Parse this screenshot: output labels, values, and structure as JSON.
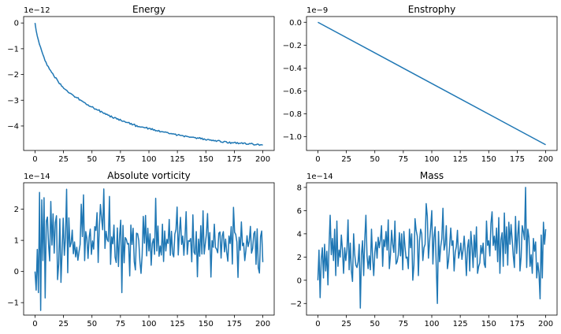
{
  "chart_data": [
    {
      "type": "line",
      "title": "Energy",
      "offset_label": "1e−12",
      "x_range": [
        0,
        200
      ],
      "xlim": [
        -10,
        210
      ],
      "ylim": [
        -4.95,
        0.25
      ],
      "xticks": [
        0,
        25,
        50,
        75,
        100,
        125,
        150,
        175,
        200
      ],
      "yticks": [
        0,
        -1,
        -2,
        -3,
        -4
      ],
      "ytick_labels": [
        "0",
        "−1",
        "−2",
        "−3",
        "−4"
      ],
      "color": "#1f77b4",
      "y": [
        0.0,
        -0.29,
        -0.5,
        -0.66,
        -0.83,
        -0.94,
        -1.08,
        -1.21,
        -1.32,
        -1.46,
        -1.53,
        -1.65,
        -1.69,
        -1.79,
        -1.84,
        -1.92,
        -1.96,
        -2.05,
        -2.13,
        -2.13,
        -2.2,
        -2.28,
        -2.36,
        -2.36,
        -2.45,
        -2.48,
        -2.54,
        -2.57,
        -2.6,
        -2.63,
        -2.69,
        -2.72,
        -2.73,
        -2.76,
        -2.79,
        -2.83,
        -2.88,
        -2.88,
        -2.91,
        -2.9,
        -2.99,
        -2.99,
        -3.02,
        -3.04,
        -3.08,
        -3.09,
        -3.14,
        -3.18,
        -3.18,
        -3.23,
        -3.24,
        -3.26,
        -3.25,
        -3.3,
        -3.35,
        -3.34,
        -3.37,
        -3.39,
        -3.37,
        -3.46,
        -3.43,
        -3.47,
        -3.51,
        -3.5,
        -3.55,
        -3.54,
        -3.58,
        -3.58,
        -3.65,
        -3.61,
        -3.67,
        -3.7,
        -3.67,
        -3.68,
        -3.73,
        -3.72,
        -3.78,
        -3.74,
        -3.79,
        -3.82,
        -3.81,
        -3.82,
        -3.86,
        -3.86,
        -3.87,
        -3.86,
        -3.93,
        -3.9,
        -3.96,
        -3.94,
        -3.93,
        -4.02,
        -3.98,
        -4.03,
        -4.02,
        -4.04,
        -4.04,
        -4.04,
        -4.05,
        -4.07,
        -4.07,
        -4.05,
        -4.12,
        -4.09,
        -4.09,
        -4.14,
        -4.1,
        -4.16,
        -4.14,
        -4.19,
        -4.18,
        -4.2,
        -4.17,
        -4.23,
        -4.22,
        -4.22,
        -4.23,
        -4.24,
        -4.23,
        -4.25,
        -4.25,
        -4.29,
        -4.3,
        -4.29,
        -4.31,
        -4.3,
        -4.32,
        -4.31,
        -4.37,
        -4.35,
        -4.33,
        -4.36,
        -4.37,
        -4.37,
        -4.38,
        -4.42,
        -4.38,
        -4.4,
        -4.41,
        -4.42,
        -4.44,
        -4.43,
        -4.44,
        -4.43,
        -4.45,
        -4.45,
        -4.49,
        -4.46,
        -4.48,
        -4.45,
        -4.5,
        -4.47,
        -4.53,
        -4.5,
        -4.53,
        -4.55,
        -4.52,
        -4.52,
        -4.55,
        -4.54,
        -4.57,
        -4.55,
        -4.58,
        -4.56,
        -4.6,
        -4.57,
        -4.56,
        -4.57,
        -4.62,
        -4.63,
        -4.64,
        -4.6,
        -4.6,
        -4.61,
        -4.66,
        -4.66,
        -4.62,
        -4.68,
        -4.64,
        -4.66,
        -4.64,
        -4.63,
        -4.68,
        -4.64,
        -4.69,
        -4.67,
        -4.67,
        -4.65,
        -4.69,
        -4.66,
        -4.66,
        -4.71,
        -4.71,
        -4.71,
        -4.68,
        -4.69,
        -4.67,
        -4.7,
        -4.74,
        -4.73,
        -4.73,
        -4.7,
        -4.71,
        -4.75,
        -4.73,
        -4.73,
        -4.74
      ]
    },
    {
      "type": "line",
      "title": "Enstrophy",
      "offset_label": "1e−9",
      "x_range": [
        0,
        200
      ],
      "xlim": [
        -10,
        210
      ],
      "ylim": [
        -1.12,
        0.05
      ],
      "xticks": [
        0,
        25,
        50,
        75,
        100,
        125,
        150,
        175,
        200
      ],
      "yticks": [
        0,
        -0.2,
        -0.4,
        -0.6,
        -0.8,
        -1.0
      ],
      "ytick_labels": [
        "0.0",
        "−0.2",
        "−0.4",
        "−0.6",
        "−0.8",
        "−1.0"
      ],
      "color": "#1f77b4",
      "y": [
        0.0,
        -1.07
      ]
    },
    {
      "type": "line",
      "title": "Absolute vorticity",
      "offset_label": "1e−14",
      "x_range": [
        0,
        200
      ],
      "xlim": [
        -10,
        210
      ],
      "ylim": [
        -1.4,
        2.85
      ],
      "xticks": [
        0,
        25,
        50,
        75,
        100,
        125,
        150,
        175,
        200
      ],
      "yticks": [
        2,
        1,
        0,
        -1
      ],
      "ytick_labels": [
        "2",
        "1",
        "0",
        "−1"
      ],
      "color": "#1f77b4",
      "y": [
        0.0,
        -0.6,
        0.71,
        -0.68,
        2.54,
        -1.25,
        2.3,
        0.35,
        2.37,
        -0.85,
        1.62,
        1.75,
        0.86,
        0.34,
        2.25,
        0.85,
        1.85,
        0.59,
        1.57,
        1.79,
        -0.26,
        0.24,
        1.69,
        -0.35,
        0.64,
        1.71,
        0.52,
        1.09,
        2.64,
        -0.04,
        1.72,
        0.79,
        0.91,
        1.33,
        0.57,
        0.95,
        0.47,
        0.78,
        0.36,
        0.63,
        0.87,
        2.16,
        1.12,
        2.46,
        0.35,
        1.28,
        1.06,
        0.42,
        1.1,
        1.36,
        0.55,
        0.98,
        0.72,
        1.44,
        1.32,
        1.89,
        0.29,
        1.4,
        2.15,
        1.72,
        1.34,
        2.65,
        0.74,
        1.29,
        1.03,
        0.96,
        2.41,
        0.23,
        1.11,
        0.89,
        1.49,
        0.46,
        0.29,
        1.4,
        0.16,
        1.14,
        1.65,
        -0.68,
        1.48,
        0.28,
        1.09,
        1.03,
        0.88,
        0.9,
        -0.14,
        1.49,
        0.87,
        1.39,
        0.31,
        0.05,
        1.23,
        1.21,
        0.99,
        0.33,
        -0.06,
        0.53,
        1.77,
        0.91,
        1.8,
        0.5,
        1.39,
        0.66,
        1.21,
        0.2,
        0.9,
        1.05,
        0.55,
        2.35,
        0.66,
        1.46,
        0.49,
        0.82,
        0.53,
        1.52,
        0.32,
        1.3,
        0.66,
        1.03,
        0.9,
        1.67,
        0.52,
        1.29,
        0.58,
        0.47,
        1.2,
        1.35,
        2.07,
        0.53,
        1.24,
        1.74,
        0.87,
        1.14,
        0.52,
        1.1,
        1.92,
        0.55,
        0.99,
        0.97,
        1.06,
        0.31,
        1.82,
        0.62,
        0.55,
        1.28,
        -0.17,
        1.04,
        0.49,
        1.47,
        0.56,
        1.95,
        0.56,
        0.89,
        1.21,
        1.86,
        0.7,
        1.25,
        -0.18,
        0.99,
        0.78,
        1.52,
        0.77,
        0.72,
        0.6,
        1.23,
        1.27,
        0.43,
        1.14,
        1.28,
        0.63,
        1.04,
        0.62,
        0.33,
        1.14,
        0.9,
        1.44,
        0.24,
        2.06,
        1.26,
        1.19,
        0.95,
        -0.19,
        1.1,
        0.68,
        1.59,
        0.83,
        0.91,
        0.35,
        0.68,
        1.15,
        0.8,
        0.97,
        1.45,
        0.59,
        0.74,
        1.21,
        1.29,
        0.23,
        1.37,
        0.12,
        -0.05,
        1.12,
        1.3,
        0.3
      ]
    },
    {
      "type": "line",
      "title": "Mass",
      "offset_label": "1e−14",
      "x_range": [
        0,
        200
      ],
      "xlim": [
        -10,
        210
      ],
      "ylim": [
        -3.0,
        8.4
      ],
      "xticks": [
        0,
        25,
        50,
        75,
        100,
        125,
        150,
        175,
        200
      ],
      "yticks": [
        8,
        6,
        4,
        2,
        0,
        -2
      ],
      "ytick_labels": [
        "8",
        "6",
        "4",
        "2",
        "0",
        "−2"
      ],
      "color": "#1f77b4",
      "y": [
        0.0,
        2.6,
        -1.5,
        1.8,
        2.8,
        0.2,
        3.1,
        0.8,
        2.5,
        -0.4,
        3.0,
        5.6,
        2.2,
        3.6,
        1.7,
        4.4,
        0.4,
        5.1,
        1.2,
        2.6,
        2.0,
        3.9,
        2.6,
        0.6,
        2.8,
        1.7,
        2.6,
        5.2,
        0.9,
        3.2,
        0.8,
        -0.1,
        4.0,
        2.2,
        1.3,
        1.1,
        1.6,
        3.1,
        -2.4,
        2.2,
        3.4,
        0.4,
        3.5,
        5.6,
        2.1,
        1.0,
        2.1,
        0.9,
        4.4,
        2.0,
        0.4,
        2.4,
        3.3,
        1.9,
        3.7,
        2.8,
        3.5,
        4.7,
        1.2,
        3.5,
        2.9,
        4.2,
        2.6,
        5.2,
        1.0,
        2.2,
        4.3,
        3.1,
        2.4,
        5.1,
        1.4,
        1.6,
        2.2,
        4.1,
        2.1,
        4.0,
        0.9,
        4.2,
        2.9,
        1.9,
        2.0,
        1.0,
        4.4,
        2.8,
        4.0,
        0.0,
        1.3,
        5.3,
        4.3,
        3.8,
        0.4,
        3.4,
        4.4,
        4.0,
        1.7,
        2.8,
        3.1,
        6.6,
        5.5,
        1.9,
        3.3,
        4.5,
        6.0,
        1.4,
        3.7,
        4.6,
        1.3,
        -2.0,
        4.2,
        1.6,
        2.9,
        3.6,
        6.2,
        2.6,
        3.1,
        4.7,
        1.0,
        1.7,
        3.0,
        4.5,
        3.0,
        3.4,
        0.8,
        2.4,
        2.9,
        4.3,
        1.9,
        2.4,
        3.2,
        1.8,
        2.6,
        3.8,
        2.4,
        0.4,
        2.8,
        3.5,
        0.8,
        4.2,
        2.9,
        1.1,
        3.9,
        2.0,
        4.6,
        0.6,
        1.2,
        1.5,
        3.0,
        2.3,
        3.2,
        1.4,
        1.1,
        5.1,
        3.0,
        3.4,
        2.1,
        4.9,
        5.9,
        3.0,
        3.8,
        2.6,
        4.5,
        1.6,
        5.4,
        0.6,
        3.5,
        4.1,
        1.2,
        5.8,
        2.3,
        4.6,
        1.3,
        5.0,
        3.1,
        4.8,
        3.5,
        2.1,
        1.1,
        5.5,
        2.3,
        3.9,
        5.1,
        0.8,
        2.0,
        4.7,
        4.2,
        3.5,
        8.0,
        1.1,
        4.4,
        3.7,
        1.2,
        2.2,
        0.6,
        3.6,
        2.5,
        3.3,
        0.2,
        1.5,
        0.6,
        -1.6,
        3.9,
        0.2,
        5.0,
        3.1,
        4.4
      ]
    }
  ]
}
